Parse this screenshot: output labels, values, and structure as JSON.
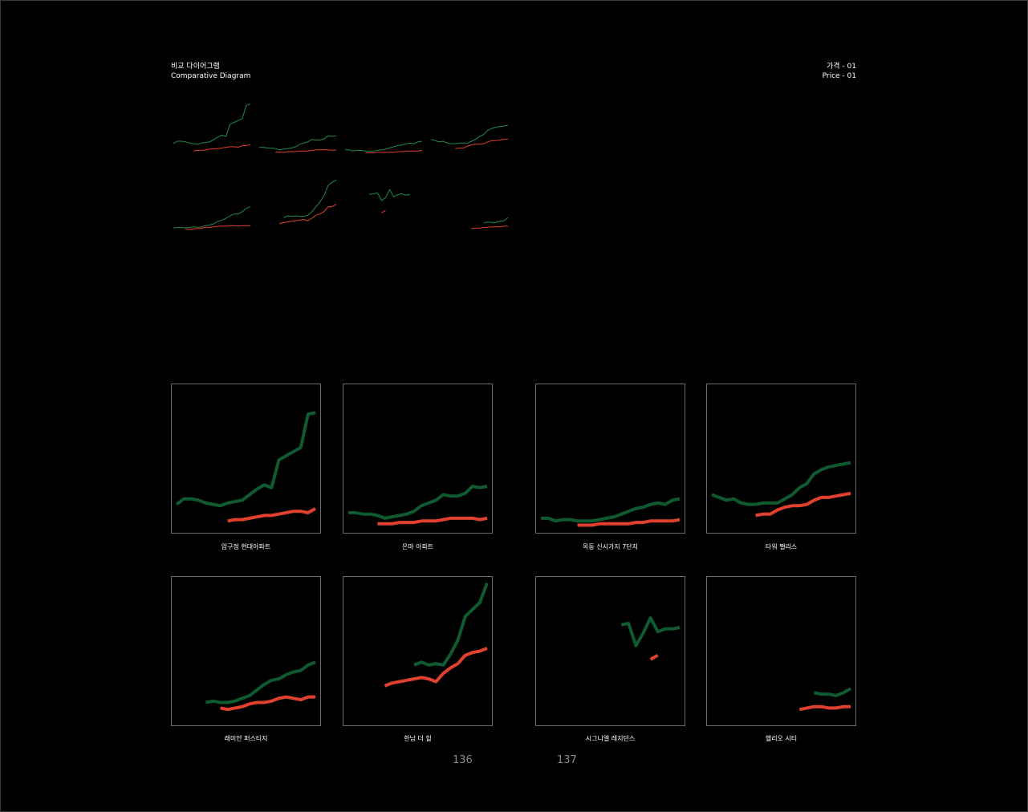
{
  "header": {
    "title_ko": "비교 다이어그램",
    "title_en": "Comparative Diagram",
    "section_ko": "가격 - 01",
    "section_en": "Price - 01"
  },
  "page_numbers": {
    "left": "136",
    "right": "137"
  },
  "colors": {
    "green": "#0f5a30",
    "red": "#e0412e",
    "border": "#6b6b6b",
    "background": "#000000"
  },
  "chart_data": {
    "type": "line",
    "ylim": [
      0,
      1
    ],
    "series_names": [
      "green",
      "red"
    ],
    "charts": [
      {
        "label": "압구정 현대아파트",
        "green": {
          "x": [
            0,
            1,
            2,
            3,
            4,
            5,
            6,
            7,
            8,
            9,
            10,
            11,
            12,
            13,
            14,
            15,
            16,
            17,
            18,
            19
          ],
          "y": [
            0.17,
            0.21,
            0.21,
            0.2,
            0.18,
            0.17,
            0.16,
            0.18,
            0.19,
            0.2,
            0.24,
            0.28,
            0.31,
            0.29,
            0.49,
            0.52,
            0.55,
            0.58,
            0.82,
            0.83
          ]
        },
        "red": {
          "x": [
            7,
            8,
            9,
            10,
            11,
            12,
            13,
            14,
            15,
            16,
            17,
            18,
            19
          ],
          "y": [
            0.05,
            0.06,
            0.06,
            0.07,
            0.08,
            0.09,
            0.09,
            0.1,
            0.11,
            0.12,
            0.12,
            0.11,
            0.14
          ]
        }
      },
      {
        "label": "은마 아파트",
        "green": {
          "x": [
            0,
            1,
            2,
            3,
            4,
            5,
            6,
            7,
            8,
            9,
            10,
            11,
            12,
            13,
            14,
            15,
            16,
            17,
            18,
            19
          ],
          "y": [
            0.11,
            0.11,
            0.1,
            0.1,
            0.09,
            0.07,
            0.08,
            0.09,
            0.1,
            0.12,
            0.16,
            0.18,
            0.2,
            0.24,
            0.23,
            0.23,
            0.25,
            0.3,
            0.29,
            0.3
          ]
        },
        "red": {
          "x": [
            4,
            5,
            6,
            7,
            8,
            9,
            10,
            11,
            12,
            13,
            14,
            15,
            16,
            17,
            18,
            19
          ],
          "y": [
            0.03,
            0.03,
            0.03,
            0.04,
            0.04,
            0.04,
            0.05,
            0.05,
            0.05,
            0.06,
            0.07,
            0.07,
            0.07,
            0.07,
            0.06,
            0.07
          ]
        }
      },
      {
        "label": "목동 신시가지 7단지",
        "green": {
          "x": [
            0,
            1,
            2,
            3,
            4,
            5,
            6,
            7,
            8,
            9,
            10,
            11,
            12,
            13,
            14,
            15,
            16,
            17,
            18,
            19
          ],
          "y": [
            0.07,
            0.07,
            0.05,
            0.06,
            0.06,
            0.05,
            0.05,
            0.05,
            0.06,
            0.07,
            0.08,
            0.1,
            0.12,
            0.14,
            0.15,
            0.17,
            0.18,
            0.17,
            0.2,
            0.21
          ]
        },
        "red": {
          "x": [
            5,
            6,
            7,
            8,
            9,
            10,
            11,
            12,
            13,
            14,
            15,
            16,
            17,
            18,
            19
          ],
          "y": [
            0.02,
            0.02,
            0.02,
            0.03,
            0.03,
            0.03,
            0.03,
            0.03,
            0.04,
            0.04,
            0.05,
            0.05,
            0.05,
            0.05,
            0.06
          ]
        }
      },
      {
        "label": "타워 팰리스",
        "green": {
          "x": [
            0,
            1,
            2,
            3,
            4,
            5,
            6,
            7,
            8,
            9,
            10,
            11,
            12,
            13,
            14,
            15,
            16,
            17,
            18,
            19
          ],
          "y": [
            0.24,
            0.22,
            0.2,
            0.21,
            0.18,
            0.17,
            0.17,
            0.18,
            0.18,
            0.18,
            0.21,
            0.24,
            0.29,
            0.32,
            0.39,
            0.42,
            0.44,
            0.45,
            0.46,
            0.47
          ]
        },
        "red": {
          "x": [
            6,
            7,
            8,
            9,
            10,
            11,
            12,
            13,
            14,
            15,
            16,
            17,
            18,
            19
          ],
          "y": [
            0.09,
            0.1,
            0.1,
            0.13,
            0.15,
            0.16,
            0.16,
            0.17,
            0.2,
            0.22,
            0.22,
            0.23,
            0.24,
            0.25
          ]
        }
      },
      {
        "label": "래미안 퍼스티지",
        "green": {
          "x": [
            4,
            5,
            6,
            7,
            8,
            9,
            10,
            11,
            12,
            13,
            14,
            15,
            16,
            17,
            18,
            19
          ],
          "y": [
            0.13,
            0.14,
            0.13,
            0.13,
            0.14,
            0.16,
            0.18,
            0.22,
            0.26,
            0.29,
            0.3,
            0.33,
            0.35,
            0.36,
            0.4,
            0.42
          ]
        },
        "red": {
          "x": [
            6,
            7,
            8,
            9,
            10,
            11,
            12,
            13,
            14,
            15,
            16,
            17,
            18,
            19
          ],
          "y": [
            0.09,
            0.08,
            0.09,
            0.1,
            0.12,
            0.13,
            0.13,
            0.14,
            0.16,
            0.17,
            0.16,
            0.15,
            0.17,
            0.17
          ]
        }
      },
      {
        "label": "한남 더 힐",
        "green": {
          "x": [
            9,
            10,
            11,
            12,
            13,
            14,
            15,
            16,
            17,
            18,
            19
          ],
          "y": [
            0.4,
            0.42,
            0.4,
            0.41,
            0.4,
            0.48,
            0.58,
            0.75,
            0.8,
            0.85,
            0.99
          ]
        },
        "red": {
          "x": [
            5,
            6,
            7,
            8,
            9,
            10,
            11,
            12,
            13,
            14,
            15,
            16,
            17,
            18,
            19
          ],
          "y": [
            0.25,
            0.27,
            0.28,
            0.29,
            0.3,
            0.31,
            0.3,
            0.28,
            0.34,
            0.38,
            0.41,
            0.47,
            0.49,
            0.5,
            0.52
          ]
        }
      },
      {
        "label": "시그니엘 레지던스",
        "green": {
          "x": [
            11,
            12,
            13,
            14,
            15,
            16,
            17,
            18,
            19
          ],
          "y": [
            0.69,
            0.7,
            0.54,
            0.63,
            0.74,
            0.64,
            0.66,
            0.66,
            0.67
          ]
        },
        "red": {
          "x": [
            15,
            16
          ],
          "y": [
            0.44,
            0.47
          ]
        }
      },
      {
        "label": "헬리오 시티",
        "green": {
          "x": [
            14,
            15,
            16,
            17,
            18,
            19
          ],
          "y": [
            0.2,
            0.19,
            0.19,
            0.18,
            0.2,
            0.23
          ]
        },
        "red": {
          "x": [
            12,
            13,
            14,
            15,
            16,
            17,
            18,
            19
          ],
          "y": [
            0.08,
            0.09,
            0.1,
            0.1,
            0.09,
            0.09,
            0.1,
            0.1
          ]
        }
      }
    ],
    "thumbnails": [
      {
        "green": {
          "x": [
            0,
            1,
            2,
            3,
            4,
            5,
            6,
            7,
            8,
            9,
            10,
            11,
            12,
            13,
            14,
            15,
            16,
            17,
            18,
            19
          ],
          "y": [
            0.17,
            0.21,
            0.21,
            0.2,
            0.18,
            0.17,
            0.16,
            0.18,
            0.19,
            0.2,
            0.24,
            0.28,
            0.31,
            0.29,
            0.49,
            0.52,
            0.55,
            0.58,
            0.8,
            0.82
          ]
        },
        "red": {
          "x": [
            5,
            6,
            7,
            8,
            9,
            10,
            11,
            12,
            13,
            14,
            15,
            16,
            17,
            18,
            19
          ],
          "y": [
            0.05,
            0.06,
            0.06,
            0.07,
            0.08,
            0.09,
            0.09,
            0.1,
            0.11,
            0.12,
            0.12,
            0.11,
            0.14,
            0.14,
            0.15
          ]
        }
      },
      {
        "green": {
          "x": [
            0,
            1,
            2,
            3,
            4,
            5,
            6,
            7,
            8,
            9,
            10,
            11,
            12,
            13,
            14,
            15,
            16,
            17,
            18,
            19
          ],
          "y": [
            0.11,
            0.11,
            0.1,
            0.1,
            0.09,
            0.07,
            0.08,
            0.09,
            0.1,
            0.12,
            0.16,
            0.18,
            0.2,
            0.24,
            0.23,
            0.23,
            0.25,
            0.3,
            0.29,
            0.3
          ]
        },
        "red": {
          "x": [
            4,
            5,
            6,
            7,
            8,
            9,
            10,
            11,
            12,
            13,
            14,
            15,
            16,
            17,
            18,
            19
          ],
          "y": [
            0.03,
            0.03,
            0.03,
            0.04,
            0.04,
            0.04,
            0.05,
            0.05,
            0.05,
            0.06,
            0.07,
            0.07,
            0.07,
            0.07,
            0.06,
            0.07
          ]
        }
      },
      {
        "green": {
          "x": [
            0,
            1,
            2,
            3,
            4,
            5,
            6,
            7,
            8,
            9,
            10,
            11,
            12,
            13,
            14,
            15,
            16,
            17,
            18,
            19
          ],
          "y": [
            0.07,
            0.07,
            0.05,
            0.06,
            0.06,
            0.05,
            0.05,
            0.05,
            0.06,
            0.07,
            0.08,
            0.1,
            0.12,
            0.14,
            0.15,
            0.17,
            0.18,
            0.17,
            0.2,
            0.21
          ]
        },
        "red": {
          "x": [
            5,
            6,
            7,
            8,
            9,
            10,
            11,
            12,
            13,
            14,
            15,
            16,
            17,
            18,
            19
          ],
          "y": [
            0.02,
            0.02,
            0.02,
            0.03,
            0.03,
            0.03,
            0.03,
            0.03,
            0.04,
            0.04,
            0.05,
            0.05,
            0.05,
            0.05,
            0.06
          ]
        }
      },
      {
        "green": {
          "x": [
            0,
            1,
            2,
            3,
            4,
            5,
            6,
            7,
            8,
            9,
            10,
            11,
            12,
            13,
            14,
            15,
            16,
            17,
            18,
            19
          ],
          "y": [
            0.24,
            0.22,
            0.2,
            0.21,
            0.18,
            0.17,
            0.17,
            0.18,
            0.18,
            0.18,
            0.21,
            0.24,
            0.29,
            0.32,
            0.39,
            0.42,
            0.44,
            0.45,
            0.46,
            0.47
          ]
        },
        "red": {
          "x": [
            6,
            7,
            8,
            9,
            10,
            11,
            12,
            13,
            14,
            15,
            16,
            17,
            18,
            19
          ],
          "y": [
            0.09,
            0.1,
            0.1,
            0.13,
            0.15,
            0.16,
            0.16,
            0.17,
            0.2,
            0.22,
            0.22,
            0.23,
            0.24,
            0.25
          ]
        }
      },
      {
        "green": {
          "x": [
            0,
            1,
            2,
            3,
            4,
            5,
            6,
            7,
            8,
            9,
            10,
            11,
            12,
            13,
            14,
            15,
            16,
            17,
            18,
            19
          ],
          "y": [
            0.05,
            0.06,
            0.06,
            0.05,
            0.06,
            0.07,
            0.06,
            0.07,
            0.09,
            0.1,
            0.12,
            0.16,
            0.18,
            0.21,
            0.25,
            0.28,
            0.28,
            0.32,
            0.37,
            0.4
          ]
        },
        "red": {
          "x": [
            3,
            4,
            5,
            6,
            7,
            8,
            9,
            10,
            11,
            12,
            13,
            14,
            15,
            16,
            17,
            18,
            19
          ],
          "y": [
            0.03,
            0.03,
            0.04,
            0.04,
            0.05,
            0.06,
            0.06,
            0.07,
            0.08,
            0.08,
            0.08,
            0.09,
            0.09,
            0.08,
            0.09,
            0.09,
            0.09
          ]
        }
      },
      {
        "green": {
          "x": [
            6,
            7,
            8,
            9,
            10,
            11,
            12,
            13,
            14,
            15,
            16,
            17,
            18,
            19
          ],
          "y": [
            0.22,
            0.25,
            0.24,
            0.25,
            0.24,
            0.24,
            0.26,
            0.32,
            0.4,
            0.48,
            0.58,
            0.75,
            0.8,
            0.84
          ]
        },
        "red": {
          "x": [
            5,
            6,
            7,
            8,
            9,
            10,
            11,
            12,
            13,
            14,
            15,
            16,
            17,
            18,
            19
          ],
          "y": [
            0.12,
            0.14,
            0.15,
            0.16,
            0.17,
            0.18,
            0.19,
            0.17,
            0.21,
            0.26,
            0.28,
            0.32,
            0.4,
            0.4,
            0.44
          ]
        }
      },
      {
        "green": {
          "x": [
            6,
            7,
            8,
            9,
            10,
            11,
            12,
            13,
            14,
            15,
            16
          ],
          "y": [
            0.6,
            0.61,
            0.63,
            0.5,
            0.55,
            0.68,
            0.56,
            0.6,
            0.61,
            0.59,
            0.6
          ]
        },
        "red": {
          "x": [
            9,
            10
          ],
          "y": [
            0.3,
            0.34
          ]
        }
      },
      {
        "green": {
          "x": [
            13,
            14,
            15,
            16,
            17,
            18,
            19
          ],
          "y": [
            0.13,
            0.15,
            0.14,
            0.14,
            0.16,
            0.17,
            0.22
          ]
        },
        "red": {
          "x": [
            10,
            11,
            12,
            13,
            14,
            15,
            16,
            17,
            18,
            19
          ],
          "y": [
            0.04,
            0.05,
            0.05,
            0.06,
            0.06,
            0.07,
            0.07,
            0.07,
            0.08,
            0.08
          ]
        }
      }
    ]
  }
}
